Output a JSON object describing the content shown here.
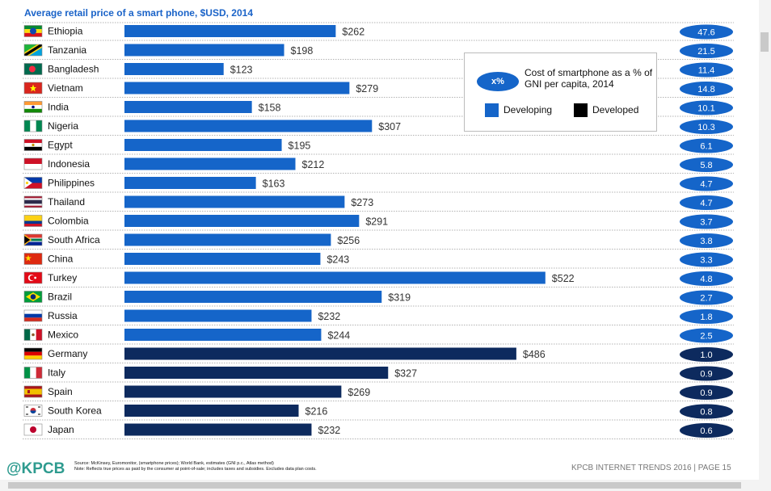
{
  "slide": {
    "logo": "@KPCB",
    "source_line1": "Source: McKinsey, Euromonitor, (smartphone prices); World Bank, estimates (GNI p.c., Atlas method)",
    "source_line2": "Note: Reflects true prices as paid by the consumer at point-of-sale; includes taxes and subsidies. Excludes data plan costs.",
    "footer": "KPCB INTERNET TRENDS 2016  |  PAGE 15"
  },
  "legend": {
    "oval_text": "x%",
    "gni_text": "Cost of smartphone as a % of GNI per capita, 2014",
    "developing": "Developing",
    "developed": "Developed"
  },
  "chart_data": {
    "type": "bar",
    "orientation": "horizontal",
    "title": "Average retail price of a smart phone, $USD, 2014",
    "value_prefix": "$",
    "colors": {
      "developing": "#1565c9",
      "developed": "#0d2a5e"
    },
    "categories": [
      "Ethiopia",
      "Tanzania",
      "Bangladesh",
      "Vietnam",
      "India",
      "Nigeria",
      "Egypt",
      "Indonesia",
      "Philippines",
      "Thailand",
      "Colombia",
      "South Africa",
      "China",
      "Turkey",
      "Brazil",
      "Russia",
      "Mexico",
      "Germany",
      "Italy",
      "Spain",
      "South Korea",
      "Japan"
    ],
    "values": [
      262,
      198,
      123,
      279,
      158,
      307,
      195,
      212,
      163,
      273,
      291,
      256,
      243,
      522,
      319,
      232,
      244,
      486,
      327,
      269,
      216,
      232
    ],
    "pct_gni": [
      "47.6",
      "21.5",
      "11.4",
      "14.8",
      "10.1",
      "10.3",
      "6.1",
      "5.8",
      "4.7",
      "4.7",
      "3.7",
      "3.8",
      "3.3",
      "4.8",
      "2.7",
      "1.8",
      "2.5",
      "1.0",
      "0.9",
      "0.9",
      "0.8",
      "0.6"
    ],
    "group": [
      "developing",
      "developing",
      "developing",
      "developing",
      "developing",
      "developing",
      "developing",
      "developing",
      "developing",
      "developing",
      "developing",
      "developing",
      "developing",
      "developing",
      "developing",
      "developing",
      "developing",
      "developed",
      "developed",
      "developed",
      "developed",
      "developed"
    ],
    "flag_icons": [
      "flag-ethiopia-icon",
      "flag-tanzania-icon",
      "flag-bangladesh-icon",
      "flag-vietnam-icon",
      "flag-india-icon",
      "flag-nigeria-icon",
      "flag-egypt-icon",
      "flag-indonesia-icon",
      "flag-philippines-icon",
      "flag-thailand-icon",
      "flag-colombia-icon",
      "flag-south-africa-icon",
      "flag-china-icon",
      "flag-turkey-icon",
      "flag-brazil-icon",
      "flag-russia-icon",
      "flag-mexico-icon",
      "flag-germany-icon",
      "flag-italy-icon",
      "flag-spain-icon",
      "flag-south-korea-icon",
      "flag-japan-icon"
    ]
  }
}
